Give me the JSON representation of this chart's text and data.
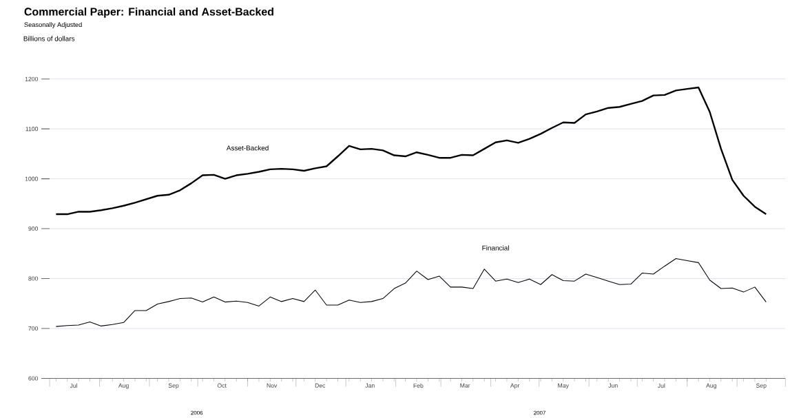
{
  "chart_data": {
    "type": "line",
    "title": "Commercial Paper: Financial and Asset-Backed",
    "subtitle": "Seasonally Adjusted",
    "annotations": [
      "Billions of dollars",
      "2006",
      "2007"
    ],
    "x": [
      "2006-07-05",
      "2006-07-12",
      "2006-07-19",
      "2006-07-26",
      "2006-08-02",
      "2006-08-09",
      "2006-08-16",
      "2006-08-23",
      "2006-08-30",
      "2006-09-06",
      "2006-09-13",
      "2006-09-20",
      "2006-09-27",
      "2006-10-04",
      "2006-10-11",
      "2006-10-18",
      "2006-10-25",
      "2006-11-01",
      "2006-11-08",
      "2006-11-15",
      "2006-11-22",
      "2006-11-29",
      "2006-12-06",
      "2006-12-13",
      "2006-12-20",
      "2006-12-27",
      "2007-01-03",
      "2007-01-10",
      "2007-01-17",
      "2007-01-24",
      "2007-01-31",
      "2007-02-07",
      "2007-02-14",
      "2007-02-21",
      "2007-02-28",
      "2007-03-07",
      "2007-03-14",
      "2007-03-21",
      "2007-03-28",
      "2007-04-04",
      "2007-04-11",
      "2007-04-18",
      "2007-04-25",
      "2007-05-02",
      "2007-05-09",
      "2007-05-16",
      "2007-05-23",
      "2007-05-30",
      "2007-06-06",
      "2007-06-13",
      "2007-06-20",
      "2007-06-27",
      "2007-07-04",
      "2007-07-11",
      "2007-07-18",
      "2007-07-25",
      "2007-08-01",
      "2007-08-08",
      "2007-08-15",
      "2007-08-22",
      "2007-08-29",
      "2007-09-05",
      "2007-09-12",
      "2007-09-19"
    ],
    "series": [
      {
        "name": "Asset-Backed",
        "color": "#000000",
        "values": [
          929,
          929,
          934,
          934,
          937,
          941,
          946,
          952,
          959,
          966,
          968,
          977,
          991,
          1007,
          1008,
          1000,
          1007,
          1010,
          1014,
          1019,
          1020,
          1019,
          1016,
          1021,
          1025,
          1045,
          1066,
          1059,
          1060,
          1057,
          1047,
          1045,
          1053,
          1048,
          1042,
          1042,
          1048,
          1047,
          1060,
          1073,
          1077,
          1072,
          1080,
          1090,
          1102,
          1113,
          1112,
          1129,
          1135,
          1142,
          1144,
          1150,
          1156,
          1167,
          1168,
          1177,
          1180,
          1183,
          1134,
          1060,
          998,
          966,
          944,
          929
        ]
      },
      {
        "name": "Financial",
        "color": "#000000",
        "values": [
          704,
          706,
          707,
          713,
          705,
          708,
          712,
          736,
          736,
          749,
          754,
          760,
          761,
          753,
          763,
          753,
          755,
          752,
          745,
          763,
          754,
          760,
          754,
          777,
          747,
          747,
          757,
          752,
          754,
          760,
          780,
          791,
          815,
          798,
          805,
          783,
          783,
          780,
          819,
          795,
          799,
          792,
          799,
          788,
          808,
          796,
          795,
          809,
          802,
          795,
          788,
          789,
          811,
          809,
          825,
          840,
          836,
          832,
          797,
          780,
          781,
          773,
          783,
          753
        ]
      }
    ],
    "xlim": [
      "2006-07-01",
      "2007-10-01"
    ],
    "xticks": [
      {
        "value": "2006-07-01",
        "label": null
      },
      {
        "value": "2006-07-16",
        "label": "Jul"
      },
      {
        "value": "2006-08-01",
        "label": null
      },
      {
        "value": "2006-08-16",
        "label": "Aug"
      },
      {
        "value": "2006-09-01",
        "label": null
      },
      {
        "value": "2006-09-16",
        "label": "Sep"
      },
      {
        "value": "2006-10-01",
        "label": null
      },
      {
        "value": "2006-10-16",
        "label": "Oct"
      },
      {
        "value": "2006-11-01",
        "label": null
      },
      {
        "value": "2006-11-16",
        "label": "Nov"
      },
      {
        "value": "2006-12-01",
        "label": null
      },
      {
        "value": "2006-12-16",
        "label": "Dec"
      },
      {
        "value": "2007-01-01",
        "label": null
      },
      {
        "value": "2007-01-16",
        "label": "Jan"
      },
      {
        "value": "2007-02-01",
        "label": null
      },
      {
        "value": "2007-02-15",
        "label": "Feb"
      },
      {
        "value": "2007-03-01",
        "label": null
      },
      {
        "value": "2007-03-16",
        "label": "Mar"
      },
      {
        "value": "2007-04-01",
        "label": null
      },
      {
        "value": "2007-04-16",
        "label": "Apr"
      },
      {
        "value": "2007-05-01",
        "label": null
      },
      {
        "value": "2007-05-16",
        "label": "May"
      },
      {
        "value": "2007-06-01",
        "label": null
      },
      {
        "value": "2007-06-16",
        "label": "Jun"
      },
      {
        "value": "2007-07-01",
        "label": null
      },
      {
        "value": "2007-07-16",
        "label": "Jul"
      },
      {
        "value": "2007-08-01",
        "label": null
      },
      {
        "value": "2007-08-16",
        "label": "Aug"
      },
      {
        "value": "2007-09-01",
        "label": null
      },
      {
        "value": "2007-09-16",
        "label": "Sep"
      },
      {
        "value": "2007-10-01",
        "label": null
      }
    ],
    "ylim": [
      600,
      1200
    ],
    "yticks": [
      600,
      700,
      800,
      900,
      1000,
      1100,
      1200
    ],
    "grid": "y"
  }
}
